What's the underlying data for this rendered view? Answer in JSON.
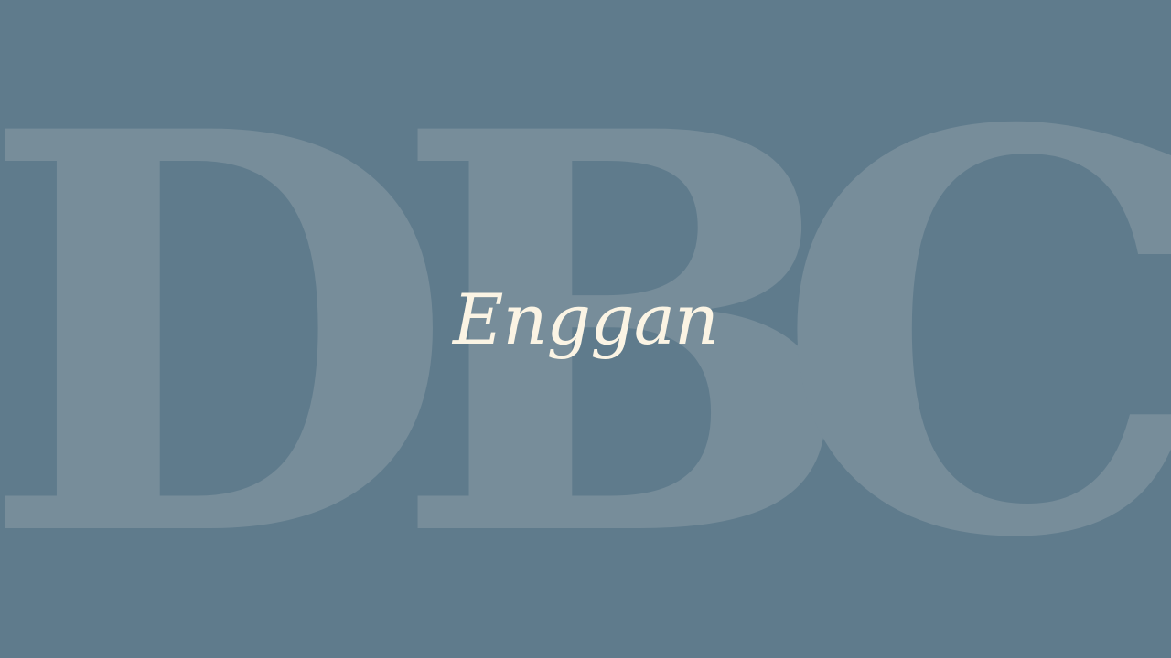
{
  "screen": {
    "background_color": "#5f7b8c",
    "watermark_color": "#778d9a",
    "title_color": "#fbf4e4"
  },
  "watermark": {
    "letters": [
      "D",
      "B",
      "C"
    ]
  },
  "title": {
    "text": "Enggan"
  }
}
